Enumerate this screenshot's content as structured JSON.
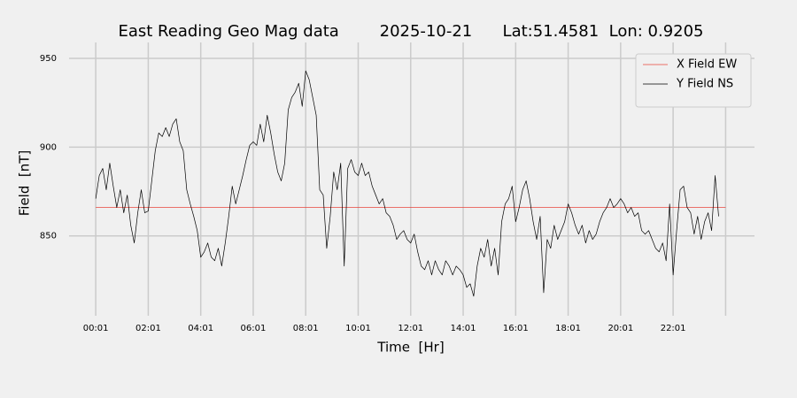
{
  "chart_data": {
    "type": "line",
    "title": "East Reading Geo Mag data        2025-10-21      Lat:51.4581  Lon: 0.9205",
    "xlabel": "Time  [Hr]",
    "ylabel": "Field  [nT]",
    "xlim": [
      -60,
      1507
    ],
    "ylim": [
      805,
      959
    ],
    "xticks": [
      {
        "value": 1,
        "label": "00:01"
      },
      {
        "value": 121,
        "label": "02:01"
      },
      {
        "value": 241,
        "label": "04:01"
      },
      {
        "value": 361,
        "label": "06:01"
      },
      {
        "value": 481,
        "label": "08:01"
      },
      {
        "value": 601,
        "label": "10:01"
      },
      {
        "value": 721,
        "label": "12:01"
      },
      {
        "value": 841,
        "label": "14:01"
      },
      {
        "value": 961,
        "label": "16:01"
      },
      {
        "value": 1081,
        "label": "18:01"
      },
      {
        "value": 1201,
        "label": "20:01"
      },
      {
        "value": 1321,
        "label": "22:01"
      },
      {
        "value": 1441,
        "label": null
      }
    ],
    "yticks": [
      850,
      900,
      950
    ],
    "grid": true,
    "legend": "upper right",
    "series": [
      {
        "name": "X Field EW",
        "color": "#e8453c",
        "width": 0.8,
        "x": [
          1,
          1441
        ],
        "values": [
          866,
          866
        ]
      },
      {
        "name": "Y Field NS",
        "color": "#000000",
        "width": 0.7,
        "x": [
          1,
          9,
          17,
          25,
          33,
          41,
          49,
          57,
          65,
          73,
          81,
          89,
          97,
          105,
          113,
          121,
          129,
          137,
          145,
          153,
          161,
          169,
          177,
          185,
          193,
          201,
          209,
          217,
          225,
          233,
          241,
          249,
          257,
          265,
          273,
          281,
          289,
          297,
          305,
          313,
          321,
          329,
          337,
          345,
          353,
          361,
          369,
          377,
          385,
          393,
          401,
          409,
          417,
          425,
          433,
          441,
          449,
          457,
          465,
          473,
          481,
          489,
          497,
          505,
          513,
          521,
          529,
          537,
          545,
          553,
          561,
          569,
          577,
          585,
          593,
          601,
          609,
          617,
          625,
          633,
          641,
          649,
          657,
          665,
          673,
          681,
          689,
          697,
          705,
          713,
          721,
          729,
          737,
          745,
          753,
          761,
          769,
          777,
          785,
          793,
          801,
          809,
          817,
          825,
          833,
          841,
          849,
          857,
          865,
          873,
          881,
          889,
          897,
          905,
          913,
          921,
          929,
          937,
          945,
          953,
          961,
          969,
          977,
          985,
          993,
          1001,
          1009,
          1017,
          1025,
          1033,
          1041,
          1049,
          1057,
          1065,
          1073,
          1081,
          1089,
          1097,
          1105,
          1113,
          1121,
          1129,
          1137,
          1145,
          1153,
          1161,
          1169,
          1177,
          1185,
          1193,
          1201,
          1209,
          1217,
          1225,
          1233,
          1241,
          1249,
          1257,
          1265,
          1273,
          1281,
          1289,
          1297,
          1305,
          1313,
          1321,
          1329,
          1337,
          1345,
          1353,
          1361,
          1369,
          1377,
          1385,
          1393,
          1401,
          1409,
          1417,
          1425
        ],
        "values": [
          871,
          884,
          888,
          876,
          891,
          878,
          866,
          876,
          863,
          873,
          856,
          846,
          863,
          876,
          863,
          864,
          881,
          898,
          908,
          906,
          911,
          906,
          913,
          916,
          903,
          898,
          876,
          868,
          861,
          853,
          838,
          841,
          846,
          838,
          836,
          843,
          833,
          846,
          861,
          878,
          868,
          876,
          884,
          893,
          901,
          903,
          901,
          913,
          903,
          918,
          908,
          896,
          886,
          881,
          891,
          921,
          928,
          931,
          936,
          923,
          943,
          938,
          928,
          918,
          876,
          873,
          843,
          861,
          886,
          876,
          891,
          833,
          888,
          893,
          886,
          884,
          891,
          884,
          886,
          878,
          873,
          868,
          871,
          863,
          861,
          856,
          848,
          851,
          853,
          848,
          846,
          851,
          841,
          833,
          831,
          836,
          828,
          836,
          831,
          828,
          836,
          833,
          828,
          833,
          831,
          828,
          821,
          823,
          816,
          833,
          843,
          838,
          848,
          833,
          843,
          828,
          858,
          868,
          871,
          878,
          858,
          866,
          876,
          881,
          871,
          858,
          848,
          861,
          818,
          848,
          843,
          856,
          848,
          853,
          858,
          868,
          863,
          856,
          851,
          856,
          846,
          853,
          848,
          851,
          858,
          863,
          866,
          871,
          866,
          868,
          871,
          868,
          863,
          866,
          861,
          863,
          853,
          851,
          853,
          848,
          843,
          841,
          846,
          836,
          868,
          828,
          853,
          876,
          878,
          866,
          863,
          851,
          861,
          848,
          858,
          863,
          853,
          884,
          861
        ]
      }
    ]
  }
}
